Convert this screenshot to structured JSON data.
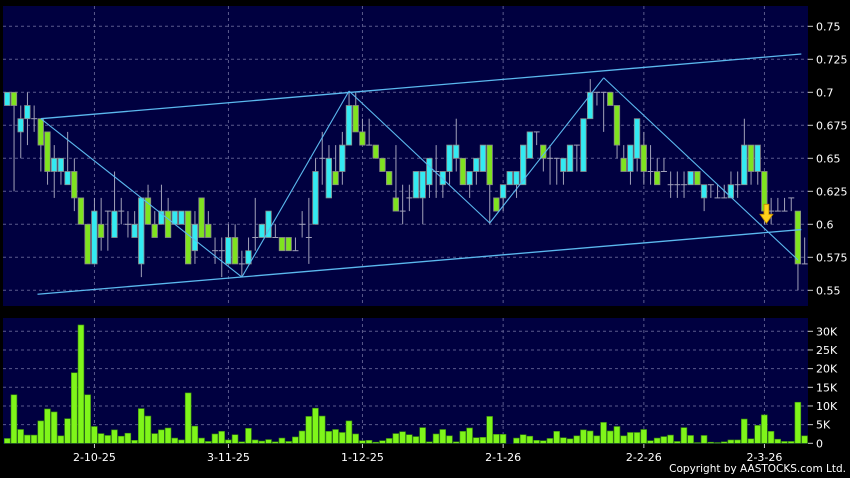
{
  "chart_data": {
    "type": "candlestick",
    "title": "",
    "colors": {
      "up": "#33eaf2",
      "down": "#7fe31f",
      "volume": "#7ff51a",
      "background": "#000040",
      "trendline": "#5bb8ee",
      "arrow": "#ffd21a"
    },
    "price_axis": {
      "ticks": [
        "0.75",
        "0.725",
        "0.7",
        "0.675",
        "0.65",
        "0.625",
        "0.6",
        "0.575",
        "0.55"
      ],
      "range": [
        0.545,
        0.77
      ],
      "grid": true
    },
    "volume_axis": {
      "ticks": [
        "30K",
        "25K",
        "20K",
        "15K",
        "10K",
        "5K",
        "0"
      ],
      "range": [
        0,
        33000
      ],
      "grid": true
    },
    "x_ticks": [
      {
        "bar": 13,
        "label": "2-10-25"
      },
      {
        "bar": 33,
        "label": "3-11-25"
      },
      {
        "bar": 53,
        "label": "1-12-25"
      },
      {
        "bar": 74,
        "label": "2-1-26"
      },
      {
        "bar": 95,
        "label": "2-2-26"
      },
      {
        "bar": 113,
        "label": "2-3-26"
      }
    ],
    "ohlc": [
      [
        0.69,
        0.7,
        0.69,
        0.7
      ],
      [
        0.7,
        0.7,
        0.625,
        0.69
      ],
      [
        0.67,
        0.69,
        0.65,
        0.68
      ],
      [
        0.68,
        0.7,
        0.66,
        0.69
      ],
      [
        0.68,
        0.69,
        0.67,
        0.68
      ],
      [
        0.68,
        0.68,
        0.64,
        0.66
      ],
      [
        0.67,
        0.67,
        0.63,
        0.64
      ],
      [
        0.64,
        0.66,
        0.62,
        0.65
      ],
      [
        0.64,
        0.65,
        0.63,
        0.65
      ],
      [
        0.63,
        0.67,
        0.63,
        0.64
      ],
      [
        0.64,
        0.65,
        0.61,
        0.62
      ],
      [
        0.62,
        0.62,
        0.6,
        0.6
      ],
      [
        0.6,
        0.6,
        0.57,
        0.57
      ],
      [
        0.57,
        0.62,
        0.57,
        0.61
      ],
      [
        0.6,
        0.62,
        0.58,
        0.59
      ],
      [
        0.61,
        0.61,
        0.58,
        0.61
      ],
      [
        0.59,
        0.64,
        0.59,
        0.61
      ],
      [
        0.61,
        0.62,
        0.6,
        0.61
      ],
      [
        0.6,
        0.61,
        0.59,
        0.6
      ],
      [
        0.59,
        0.61,
        0.59,
        0.6
      ],
      [
        0.57,
        0.62,
        0.56,
        0.62
      ],
      [
        0.62,
        0.63,
        0.6,
        0.6
      ],
      [
        0.6,
        0.61,
        0.59,
        0.59
      ],
      [
        0.6,
        0.63,
        0.6,
        0.61
      ],
      [
        0.61,
        0.62,
        0.59,
        0.59
      ],
      [
        0.6,
        0.61,
        0.6,
        0.61
      ],
      [
        0.6,
        0.61,
        0.6,
        0.61
      ],
      [
        0.61,
        0.61,
        0.57,
        0.57
      ],
      [
        0.58,
        0.61,
        0.57,
        0.6
      ],
      [
        0.62,
        0.62,
        0.59,
        0.59
      ],
      [
        0.6,
        0.61,
        0.59,
        0.59
      ],
      [
        0.58,
        0.59,
        0.57,
        0.58
      ],
      [
        0.58,
        0.59,
        0.56,
        0.58
      ],
      [
        0.57,
        0.6,
        0.57,
        0.59
      ],
      [
        0.59,
        0.6,
        0.57,
        0.57
      ],
      [
        0.57,
        0.58,
        0.56,
        0.57
      ],
      [
        0.57,
        0.59,
        0.57,
        0.58
      ],
      [
        0.59,
        0.62,
        0.58,
        0.59
      ],
      [
        0.59,
        0.6,
        0.59,
        0.6
      ],
      [
        0.59,
        0.61,
        0.59,
        0.61
      ],
      [
        0.59,
        0.6,
        0.59,
        0.59
      ],
      [
        0.59,
        0.59,
        0.58,
        0.58
      ],
      [
        0.59,
        0.59,
        0.58,
        0.58
      ],
      [
        0.58,
        0.59,
        0.58,
        0.58
      ],
      [
        0.6,
        0.61,
        0.59,
        0.6
      ],
      [
        0.59,
        0.62,
        0.57,
        0.59
      ],
      [
        0.6,
        0.65,
        0.6,
        0.64
      ],
      [
        0.65,
        0.67,
        0.63,
        0.65
      ],
      [
        0.62,
        0.66,
        0.62,
        0.65
      ],
      [
        0.64,
        0.66,
        0.63,
        0.63
      ],
      [
        0.64,
        0.67,
        0.63,
        0.66
      ],
      [
        0.66,
        0.7,
        0.66,
        0.69
      ],
      [
        0.69,
        0.7,
        0.67,
        0.67
      ],
      [
        0.67,
        0.68,
        0.66,
        0.66
      ],
      [
        0.66,
        0.68,
        0.66,
        0.66
      ],
      [
        0.66,
        0.66,
        0.65,
        0.65
      ],
      [
        0.65,
        0.65,
        0.64,
        0.64
      ],
      [
        0.64,
        0.64,
        0.63,
        0.63
      ],
      [
        0.62,
        0.66,
        0.61,
        0.61
      ],
      [
        0.61,
        0.63,
        0.6,
        0.61
      ],
      [
        0.62,
        0.63,
        0.61,
        0.62
      ],
      [
        0.62,
        0.64,
        0.62,
        0.64
      ],
      [
        0.62,
        0.64,
        0.6,
        0.64
      ],
      [
        0.63,
        0.65,
        0.62,
        0.65
      ],
      [
        0.64,
        0.66,
        0.62,
        0.64
      ],
      [
        0.63,
        0.64,
        0.62,
        0.64
      ],
      [
        0.64,
        0.66,
        0.63,
        0.66
      ],
      [
        0.65,
        0.68,
        0.64,
        0.66
      ],
      [
        0.65,
        0.65,
        0.63,
        0.63
      ],
      [
        0.63,
        0.64,
        0.62,
        0.64
      ],
      [
        0.64,
        0.65,
        0.63,
        0.65
      ],
      [
        0.64,
        0.66,
        0.64,
        0.66
      ],
      [
        0.66,
        0.66,
        0.6,
        0.63
      ],
      [
        0.62,
        0.62,
        0.61,
        0.61
      ],
      [
        0.62,
        0.63,
        0.61,
        0.63
      ],
      [
        0.63,
        0.64,
        0.63,
        0.64
      ],
      [
        0.63,
        0.64,
        0.62,
        0.64
      ],
      [
        0.63,
        0.66,
        0.63,
        0.66
      ],
      [
        0.65,
        0.67,
        0.65,
        0.67
      ],
      [
        0.67,
        0.67,
        0.66,
        0.67
      ],
      [
        0.66,
        0.66,
        0.64,
        0.65
      ],
      [
        0.65,
        0.66,
        0.63,
        0.65
      ],
      [
        0.65,
        0.65,
        0.63,
        0.65
      ],
      [
        0.64,
        0.65,
        0.63,
        0.65
      ],
      [
        0.64,
        0.66,
        0.64,
        0.66
      ],
      [
        0.66,
        0.66,
        0.64,
        0.66
      ],
      [
        0.64,
        0.68,
        0.64,
        0.68
      ],
      [
        0.68,
        0.71,
        0.68,
        0.7
      ],
      [
        0.7,
        0.7,
        0.69,
        0.7
      ],
      [
        0.7,
        0.7,
        0.67,
        0.7
      ],
      [
        0.7,
        0.7,
        0.69,
        0.69
      ],
      [
        0.69,
        0.69,
        0.65,
        0.66
      ],
      [
        0.65,
        0.66,
        0.64,
        0.64
      ],
      [
        0.64,
        0.66,
        0.63,
        0.66
      ],
      [
        0.65,
        0.68,
        0.64,
        0.68
      ],
      [
        0.66,
        0.67,
        0.63,
        0.64
      ],
      [
        0.64,
        0.66,
        0.63,
        0.64
      ],
      [
        0.64,
        0.65,
        0.63,
        0.63
      ],
      [
        0.64,
        0.65,
        0.64,
        0.64
      ],
      [
        0.63,
        0.64,
        0.62,
        0.63
      ],
      [
        0.63,
        0.64,
        0.62,
        0.63
      ],
      [
        0.63,
        0.64,
        0.62,
        0.63
      ],
      [
        0.63,
        0.64,
        0.63,
        0.64
      ],
      [
        0.64,
        0.64,
        0.63,
        0.63
      ],
      [
        0.62,
        0.63,
        0.61,
        0.63
      ],
      [
        0.63,
        0.63,
        0.62,
        0.63
      ],
      [
        0.62,
        0.63,
        0.62,
        0.62
      ],
      [
        0.62,
        0.63,
        0.62,
        0.62
      ],
      [
        0.62,
        0.64,
        0.62,
        0.63
      ],
      [
        0.63,
        0.64,
        0.62,
        0.63
      ],
      [
        0.63,
        0.68,
        0.63,
        0.66
      ],
      [
        0.66,
        0.66,
        0.63,
        0.64
      ],
      [
        0.64,
        0.66,
        0.63,
        0.66
      ],
      [
        0.64,
        0.64,
        0.6,
        0.61
      ],
      [
        0.61,
        0.62,
        0.6,
        0.61
      ],
      [
        0.61,
        0.62,
        0.61,
        0.61
      ],
      [
        0.61,
        0.62,
        0.61,
        0.61
      ],
      [
        0.62,
        0.62,
        0.61,
        0.62
      ],
      [
        0.61,
        0.61,
        0.55,
        0.57
      ],
      [
        0.57,
        0.59,
        0.57,
        0.57
      ]
    ],
    "volume": [
      1300,
      13000,
      3700,
      2200,
      2200,
      6000,
      9200,
      8400,
      2000,
      6600,
      18900,
      31700,
      13000,
      4500,
      2600,
      2100,
      3600,
      1900,
      2700,
      800,
      9300,
      7300,
      2600,
      3600,
      4100,
      1400,
      900,
      13500,
      4600,
      1400,
      500,
      2500,
      3200,
      900,
      2300,
      400,
      4000,
      900,
      600,
      1000,
      400,
      1400,
      500,
      1700,
      3300,
      7200,
      9400,
      7300,
      3200,
      3700,
      2900,
      6000,
      2500,
      700,
      800,
      300,
      700,
      1300,
      2600,
      3100,
      2300,
      1800,
      4200,
      400,
      2500,
      3700,
      2000,
      400,
      3200,
      4100,
      1500,
      1600,
      7200,
      2400,
      2400,
      0,
      1400,
      2300,
      1900,
      800,
      700,
      1300,
      3200,
      1500,
      1200,
      2000,
      3600,
      3300,
      2000,
      5600,
      3300,
      4500,
      2000,
      2900,
      2900,
      3700,
      700,
      1400,
      1800,
      2200,
      500,
      4200,
      2100,
      200,
      2100,
      300,
      200,
      400,
      900,
      900,
      6500,
      1200,
      4800,
      7600,
      3200,
      1100,
      500,
      500,
      11000,
      2000
    ],
    "trendlines": [
      {
        "from": {
          "bar": 5,
          "price": 0.68
        },
        "to": {
          "bar": 118.5,
          "price": 0.729
        }
      },
      {
        "from": {
          "bar": 4.5,
          "price": 0.547
        },
        "to": {
          "bar": 118.5,
          "price": 0.596
        }
      }
    ],
    "zigzag": [
      {
        "bar": 5,
        "price": 0.68
      },
      {
        "bar": 35,
        "price": 0.56
      },
      {
        "bar": 51,
        "price": 0.701
      },
      {
        "bar": 72,
        "price": 0.601
      },
      {
        "bar": 89,
        "price": 0.711
      },
      {
        "bar": 118,
        "price": 0.573
      }
    ],
    "signal_arrow": {
      "bar": 113,
      "price": 0.6,
      "direction": "down"
    }
  },
  "footer": {
    "copyright": "Copyright by AASTOCKS.com Ltd."
  }
}
